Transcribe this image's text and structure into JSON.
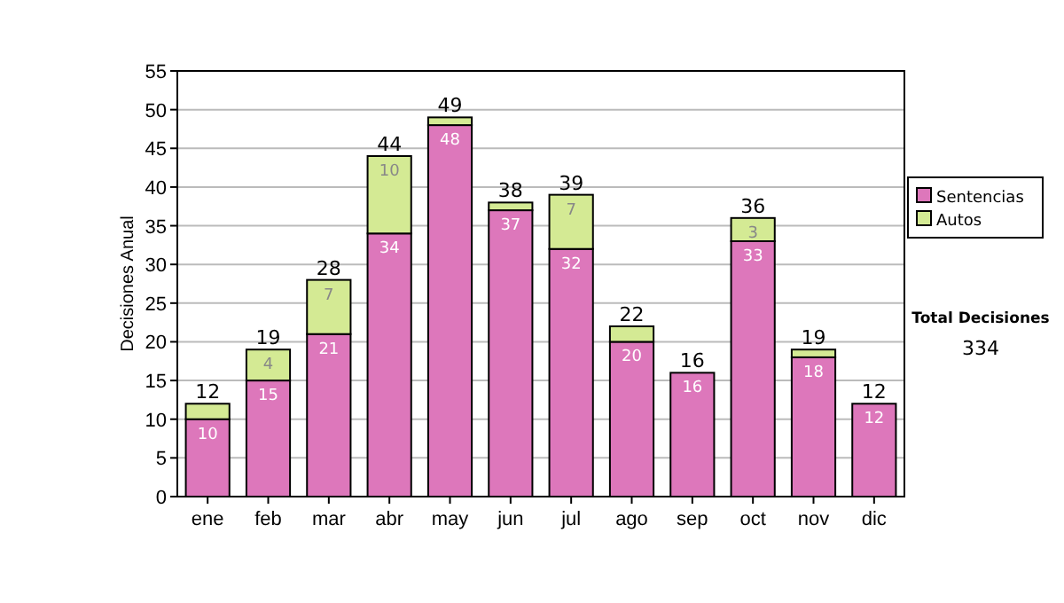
{
  "chart_data": {
    "type": "bar",
    "stacked": true,
    "ylabel": "Decisiones Anual",
    "categories": [
      "ene",
      "feb",
      "mar",
      "abr",
      "may",
      "jun",
      "jul",
      "ago",
      "sep",
      "oct",
      "nov",
      "dic"
    ],
    "series": [
      {
        "name": "Sentencias",
        "color": "#dd77bb",
        "values": [
          10,
          15,
          21,
          34,
          48,
          37,
          32,
          20,
          16,
          33,
          18,
          12
        ],
        "value_labels": [
          "10",
          "15",
          "21",
          "34",
          "48",
          "37",
          "32",
          "20",
          "16",
          "33",
          "18",
          "12"
        ]
      },
      {
        "name": "Autos",
        "color": "#d4ea94",
        "values": [
          2,
          4,
          7,
          10,
          1,
          1,
          7,
          2,
          0,
          3,
          1,
          0
        ],
        "value_labels": [
          null,
          "4",
          "7",
          "10",
          null,
          null,
          "7",
          null,
          null,
          "3",
          null,
          null
        ]
      }
    ],
    "totals": [
      "12",
      "19",
      "28",
      "44",
      "49",
      "38",
      "39",
      "22",
      "16",
      "36",
      "19",
      "12"
    ],
    "ylim": [
      0,
      55
    ],
    "yticks": [
      0,
      5,
      10,
      15,
      20,
      25,
      30,
      35,
      40,
      45,
      50,
      55
    ],
    "grid": "y",
    "legend": "right",
    "annotations": [
      "Total Decisiones",
      "334"
    ]
  }
}
